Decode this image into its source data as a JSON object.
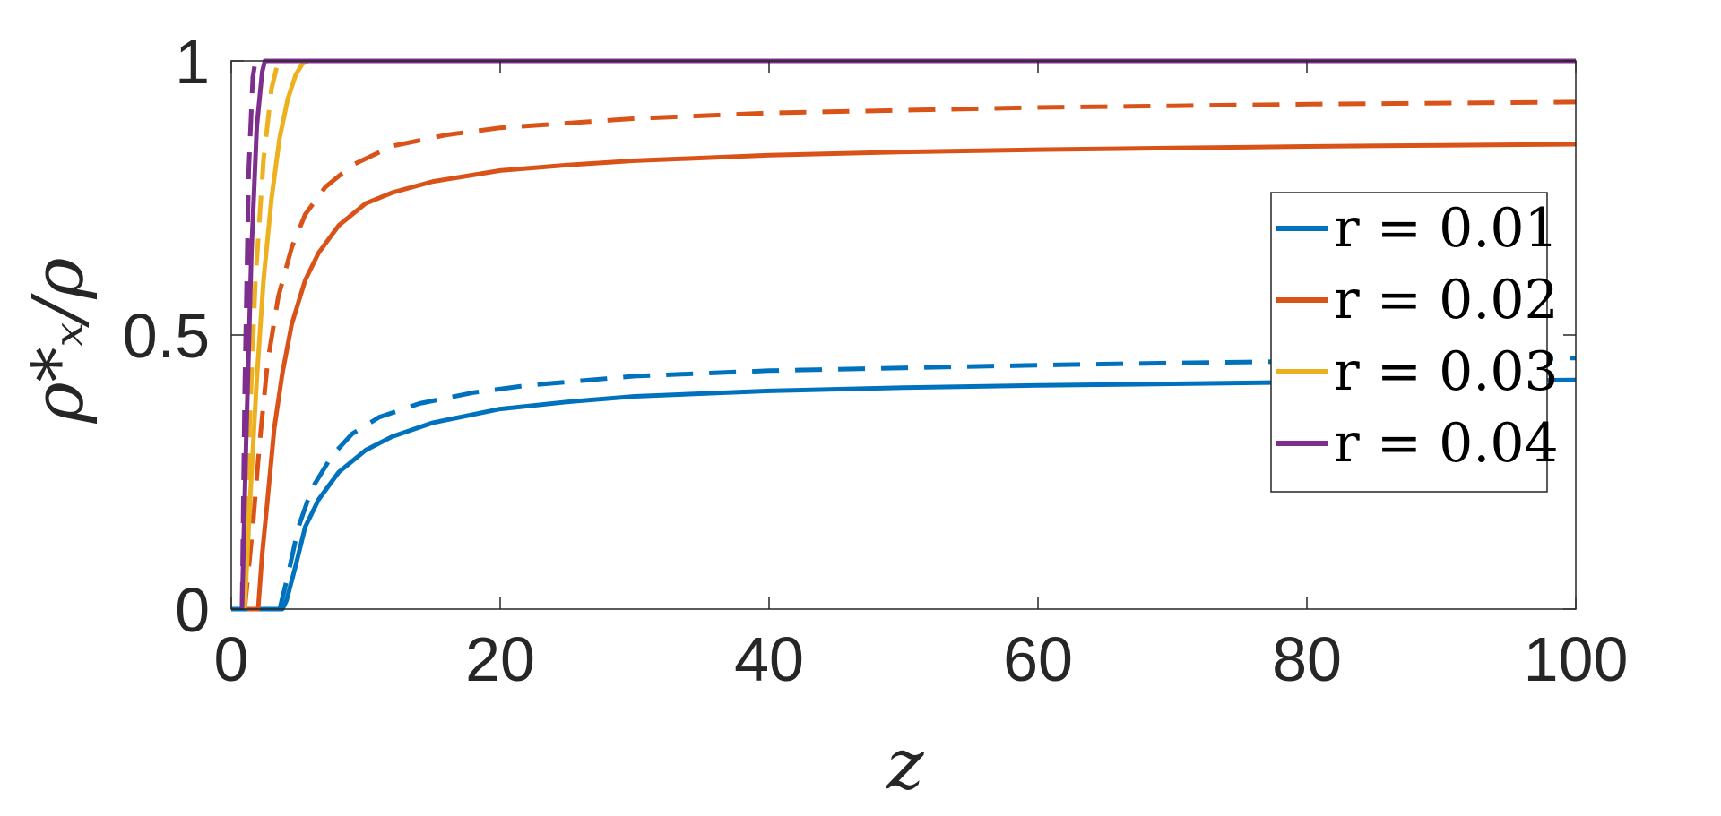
{
  "chart_data": {
    "type": "line",
    "xlabel": "z",
    "ylabel": "ρ*ₓ/ρ",
    "xlim": [
      0,
      100
    ],
    "ylim": [
      0,
      1
    ],
    "xticks": [
      "0",
      "20",
      "40",
      "60",
      "80",
      "100"
    ],
    "yticks": [
      "0",
      "0.5",
      "1"
    ],
    "grid": false,
    "legend_position": "right-middle",
    "series": [
      {
        "name": "r = 0.01",
        "color": "#0072BD",
        "style": "solid",
        "x": [
          0,
          3.8,
          4.1,
          4.8,
          5.5,
          6.5,
          8,
          10,
          12,
          15,
          20,
          25,
          30,
          40,
          50,
          60,
          70,
          80,
          90,
          100
        ],
        "y": [
          0,
          0,
          0.015,
          0.08,
          0.15,
          0.2,
          0.25,
          0.29,
          0.315,
          0.34,
          0.365,
          0.378,
          0.388,
          0.398,
          0.404,
          0.408,
          0.411,
          0.414,
          0.416,
          0.418
        ]
      },
      {
        "name": "",
        "color": "#0072BD",
        "style": "dashed",
        "x": [
          3.6,
          4.2,
          5,
          6,
          7.5,
          9,
          11,
          14,
          18,
          22,
          30,
          40,
          50,
          60,
          70,
          80,
          90,
          100
        ],
        "y": [
          0,
          0.06,
          0.15,
          0.22,
          0.28,
          0.32,
          0.35,
          0.375,
          0.395,
          0.408,
          0.425,
          0.435,
          0.44,
          0.445,
          0.449,
          0.452,
          0.455,
          0.458
        ]
      },
      {
        "name": "r = 0.02",
        "color": "#D95319",
        "style": "solid",
        "x": [
          1.2,
          2.0,
          2.3,
          2.7,
          3.2,
          3.8,
          4.5,
          5.5,
          6.5,
          8,
          10,
          12,
          15,
          20,
          25,
          30,
          40,
          50,
          60,
          70,
          80,
          90,
          100
        ],
        "y": [
          0,
          0,
          0.1,
          0.2,
          0.33,
          0.43,
          0.52,
          0.6,
          0.65,
          0.7,
          0.74,
          0.76,
          0.78,
          0.8,
          0.81,
          0.818,
          0.828,
          0.834,
          0.838,
          0.841,
          0.844,
          0.846,
          0.848
        ]
      },
      {
        "name": "",
        "color": "#D95319",
        "style": "dashed",
        "x": [
          1.0,
          1.6,
          2.1,
          2.7,
          3.5,
          4.5,
          5.5,
          7,
          9,
          12,
          16,
          20,
          30,
          40,
          50,
          60,
          70,
          80,
          90,
          100
        ],
        "y": [
          0,
          0.15,
          0.3,
          0.45,
          0.57,
          0.66,
          0.72,
          0.77,
          0.81,
          0.845,
          0.865,
          0.878,
          0.895,
          0.905,
          0.91,
          0.915,
          0.918,
          0.921,
          0.923,
          0.925
        ]
      },
      {
        "name": "r = 0.03",
        "color": "#EDB120",
        "style": "solid",
        "x": [
          1.0,
          1.4,
          1.9,
          2.4,
          3.0,
          3.6,
          4.2,
          4.8,
          5.3,
          5.7,
          100
        ],
        "y": [
          0,
          0.2,
          0.42,
          0.6,
          0.75,
          0.86,
          0.93,
          0.975,
          0.995,
          1.0,
          1.0
        ]
      },
      {
        "name": "",
        "color": "#EDB120",
        "style": "dashed",
        "x": [
          0.9,
          1.3,
          1.8,
          2.4,
          3.0,
          3.4,
          3.6,
          100
        ],
        "y": [
          0,
          0.3,
          0.6,
          0.82,
          0.95,
          0.99,
          1.0,
          1.0
        ]
      },
      {
        "name": "r = 0.04",
        "color": "#7E2F8E",
        "style": "solid",
        "x": [
          0.8,
          1.1,
          1.5,
          1.9,
          2.3,
          2.5,
          100
        ],
        "y": [
          0,
          0.3,
          0.65,
          0.88,
          0.98,
          1.0,
          1.0
        ]
      },
      {
        "name": "",
        "color": "#7E2F8E",
        "style": "dashed",
        "x": [
          0.8,
          1.0,
          1.3,
          1.6,
          1.8,
          100
        ],
        "y": [
          0,
          0.4,
          0.8,
          0.97,
          1.0,
          1.0
        ]
      }
    ]
  }
}
